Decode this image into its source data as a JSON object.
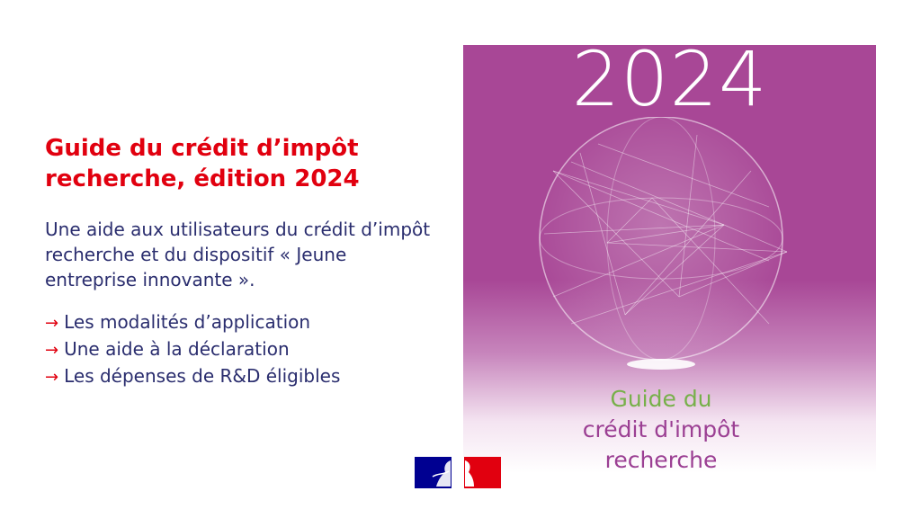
{
  "slide": {
    "title": "Guide du crédit d’impôt recherche, édition 2024",
    "intro": "Une aide aux utilisateurs du crédit d’impôt recherche et du dispositif « Jeune entreprise innovante ».",
    "bullets": [
      "Les modalités d’application",
      "Une aide à la déclaration",
      "Les dépenses de R&D éligibles"
    ]
  },
  "cover": {
    "year": "2024",
    "line1": "Guide du",
    "line2": "crédit d'impôt",
    "line3": "recherche"
  },
  "icons": {
    "bullet": "arrow-right-icon",
    "logo": "marianne-flag-logo"
  },
  "colors": {
    "title": "#e1000f",
    "body": "#2a2d6e",
    "cover_background": "#a84796",
    "cover_green": "#77b04a",
    "cover_purple": "#9b3f93"
  }
}
